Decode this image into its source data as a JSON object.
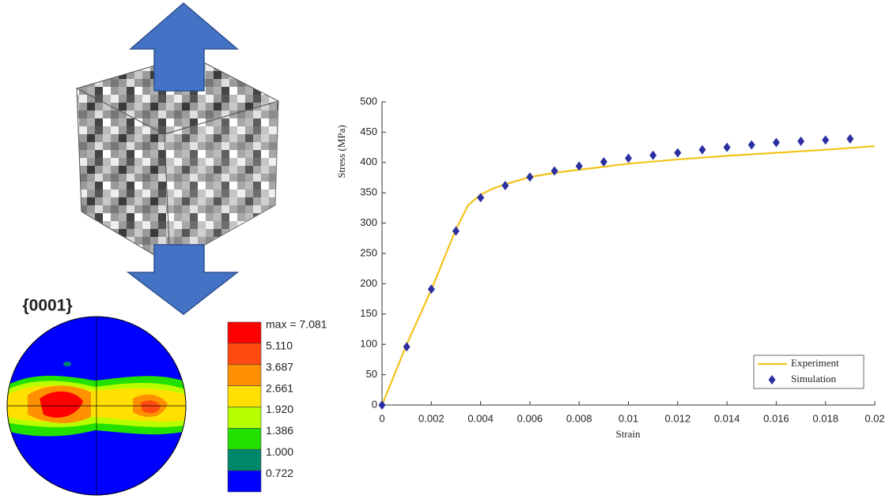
{
  "chart_data": {
    "type": "line",
    "xlabel": "Strain",
    "ylabel": "Stress (MPa)",
    "xlim": [
      0,
      0.02
    ],
    "ylim": [
      0,
      500
    ],
    "xticks": [
      0,
      0.002,
      0.004,
      0.006,
      0.008,
      0.01,
      0.012,
      0.014,
      0.016,
      0.018,
      0.02
    ],
    "yticks": [
      0,
      50,
      100,
      150,
      200,
      250,
      300,
      350,
      400,
      450,
      500
    ],
    "legend": "lower right",
    "series": [
      {
        "name": "Experiment",
        "color": "#f2c31a",
        "kind": "line",
        "x": [
          0,
          0.001,
          0.002,
          0.003,
          0.0035,
          0.004,
          0.0045,
          0.005,
          0.006,
          0.007,
          0.008,
          0.01,
          0.012,
          0.014,
          0.016,
          0.018,
          0.02
        ],
        "values": [
          0,
          100,
          190,
          290,
          330,
          347,
          357,
          364,
          376,
          383,
          388,
          398,
          405,
          411,
          416,
          421,
          427
        ]
      },
      {
        "name": "Simulation",
        "color": "#2b2fa0",
        "kind": "scatter",
        "x": [
          0,
          0.001,
          0.002,
          0.003,
          0.004,
          0.005,
          0.006,
          0.007,
          0.008,
          0.009,
          0.01,
          0.011,
          0.012,
          0.013,
          0.014,
          0.015,
          0.016,
          0.017,
          0.018,
          0.019
        ],
        "values": [
          0,
          96,
          191,
          287,
          342,
          362,
          376,
          386,
          394,
          401,
          407,
          412,
          416,
          421,
          425,
          429,
          433,
          435,
          437,
          439
        ]
      }
    ]
  },
  "pole_figure": {
    "title": "{0001}",
    "levels": [
      {
        "label": "max = 7.081",
        "color": "#ff0000"
      },
      {
        "label": "5.110",
        "color": "#ff4a10"
      },
      {
        "label": "3.687",
        "color": "#ff9000"
      },
      {
        "label": "2.661",
        "color": "#ffe000"
      },
      {
        "label": "1.920",
        "color": "#b8ff00"
      },
      {
        "label": "1.386",
        "color": "#22e000"
      },
      {
        "label": "1.000",
        "color": "#00886a"
      },
      {
        "label": "0.722",
        "color": "#0000ff"
      }
    ]
  }
}
